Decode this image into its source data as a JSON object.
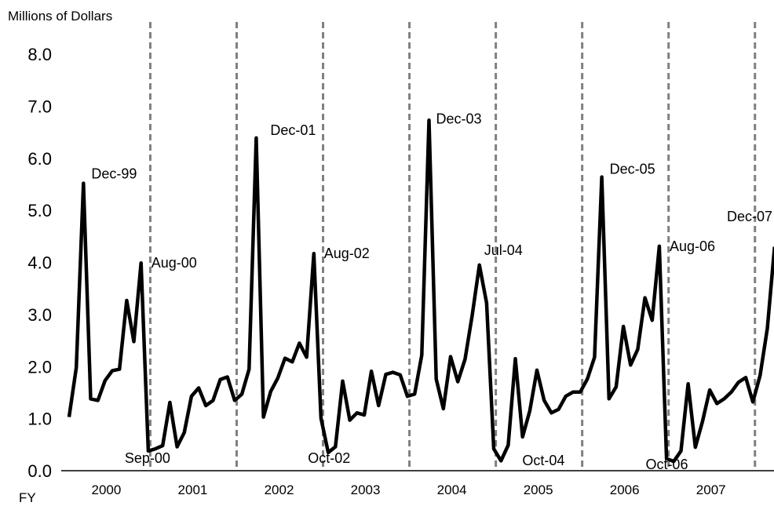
{
  "chart_data": {
    "type": "line",
    "title": "",
    "ylabel": "Millions of Dollars",
    "xlabel": "FY",
    "ylim": [
      0,
      8
    ],
    "yticks": [
      "0.0",
      "1.0",
      "2.0",
      "3.0",
      "4.0",
      "5.0",
      "6.0",
      "7.0",
      "8.0"
    ],
    "fiscal_years": [
      "2000",
      "2001",
      "2002",
      "2003",
      "2004",
      "2005",
      "2006",
      "2007"
    ],
    "grid": false,
    "year_dividers": "dashed-gray",
    "colors": {
      "line": "#000000",
      "divider": "#808080"
    },
    "series": [
      {
        "values": [
          1.03,
          1.98,
          5.52,
          1.38,
          1.35,
          1.73,
          1.92,
          1.95,
          3.27,
          2.48,
          3.99,
          0.38,
          0.42,
          0.48,
          1.31,
          0.46,
          0.73,
          1.43,
          1.59,
          1.25,
          1.35,
          1.75,
          1.8,
          1.35,
          1.47,
          1.95,
          6.39,
          1.03,
          1.52,
          1.78,
          2.16,
          2.09,
          2.45,
          2.18,
          4.17,
          1.01,
          0.35,
          0.46,
          1.72,
          0.97,
          1.11,
          1.07,
          1.91,
          1.25,
          1.85,
          1.89,
          1.84,
          1.43,
          1.47,
          2.22,
          6.73,
          1.76,
          1.19,
          2.19,
          1.71,
          2.14,
          2.98,
          3.95,
          3.22,
          0.42,
          0.19,
          0.49,
          2.15,
          0.65,
          1.15,
          1.93,
          1.35,
          1.11,
          1.18,
          1.43,
          1.51,
          1.51,
          1.76,
          2.18,
          5.64,
          1.38,
          1.61,
          2.77,
          2.03,
          2.33,
          3.32,
          2.89,
          4.31,
          0.23,
          0.18,
          0.38,
          1.67,
          0.45,
          0.95,
          1.55,
          1.29,
          1.38,
          1.51,
          1.7,
          1.79,
          1.32,
          1.83,
          2.73,
          4.3
        ]
      }
    ],
    "annotations": [
      {
        "text": "Dec-99",
        "index": 2
      },
      {
        "text": "Aug-00",
        "index": 10
      },
      {
        "text": "Sep-00",
        "index": 11
      },
      {
        "text": "Dec-01",
        "index": 26
      },
      {
        "text": "Aug-02",
        "index": 34
      },
      {
        "text": "Oct-02",
        "index": 37
      },
      {
        "text": "Dec-03",
        "index": 50
      },
      {
        "text": "Jul-04",
        "index": 57
      },
      {
        "text": "Oct-04",
        "index": 61
      },
      {
        "text": "Dec-05",
        "index": 74
      },
      {
        "text": "Aug-06",
        "index": 82
      },
      {
        "text": "Oct-06",
        "index": 85
      },
      {
        "text": "Dec-07",
        "index": 98
      }
    ]
  }
}
